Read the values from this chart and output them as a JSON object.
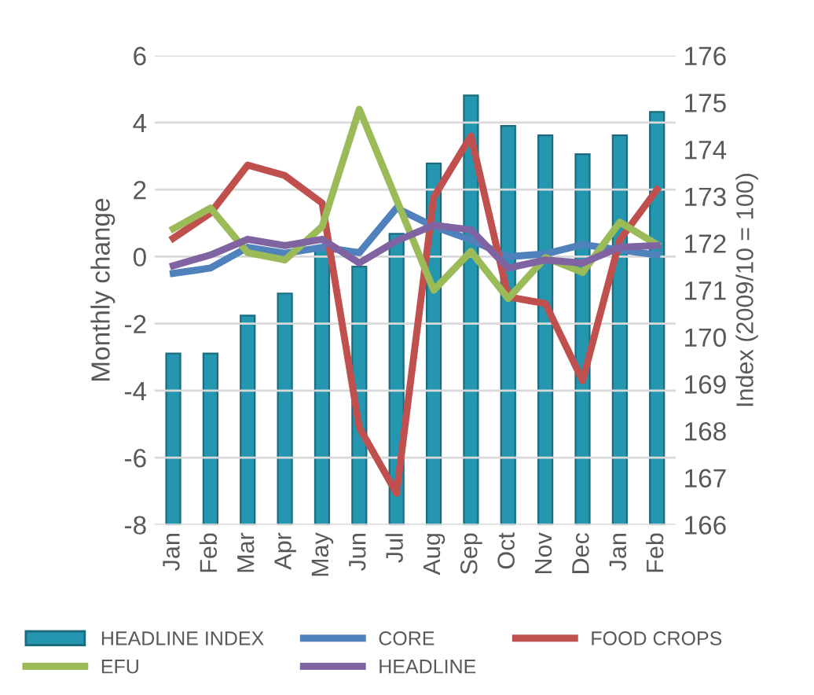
{
  "chart_data": {
    "type": "line",
    "ylabel": "Monthly change",
    "y2label": "Index (2009/10 = 100)",
    "categories": [
      "Jan",
      "Feb",
      "Mar",
      "Apr",
      "May",
      "Jun",
      "Jul",
      "Aug",
      "Sep",
      "Oct",
      "Nov",
      "Dec",
      "Jan",
      "Feb"
    ],
    "series": [
      {
        "name": "HEADLINE INDEX",
        "type": "bar",
        "axis": "y2",
        "color": "#2596b0",
        "values": [
          169.65,
          169.65,
          170.46,
          170.93,
          171.9,
          171.5,
          172.2,
          173.7,
          175.15,
          174.5,
          174.3,
          173.9,
          174.3,
          174.8
        ]
      },
      {
        "name": "CORE",
        "color": "#4f81bd",
        "values": [
          -0.5,
          -0.34,
          0.28,
          0.1,
          0.28,
          0.12,
          1.45,
          0.9,
          0.5,
          0.0,
          0.08,
          0.36,
          0.2,
          0.05
        ]
      },
      {
        "name": "FOOD CROPS",
        "color": "#c0504d",
        "values": [
          0.55,
          1.3,
          2.73,
          2.42,
          1.6,
          -5.1,
          -7.06,
          1.77,
          3.6,
          -1.2,
          -1.4,
          -3.7,
          0.5,
          2.0
        ]
      },
      {
        "name": "EFU",
        "color": "#9bbb59",
        "values": [
          0.83,
          1.45,
          0.12,
          -0.1,
          0.9,
          4.4,
          1.7,
          -1.0,
          0.16,
          -1.25,
          -0.03,
          -0.47,
          1.03,
          0.36
        ]
      },
      {
        "name": "HEADLINE",
        "color": "#8064a2",
        "values": [
          -0.27,
          0.05,
          0.52,
          0.33,
          0.52,
          -0.19,
          0.47,
          0.94,
          0.8,
          -0.34,
          -0.1,
          -0.19,
          0.28,
          0.33
        ]
      }
    ],
    "ylim": [
      -8,
      6
    ],
    "yticks": [
      -8,
      -6,
      -4,
      -2,
      0,
      2,
      4,
      6
    ],
    "y2lim": [
      166,
      176
    ],
    "y2ticks": [
      166,
      167,
      168,
      169,
      170,
      171,
      172,
      173,
      174,
      175,
      176
    ],
    "grid": "y",
    "legend": "bottom",
    "marker": "none",
    "line_style": "solid"
  }
}
